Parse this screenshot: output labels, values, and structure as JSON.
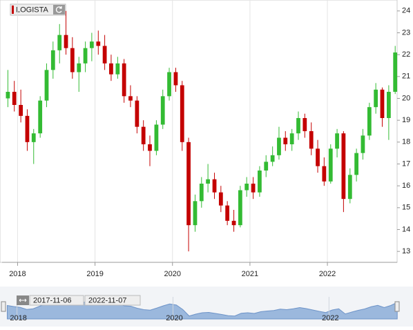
{
  "chart_data": {
    "type": "candlestick",
    "symbol": "LOGISTA",
    "x": [
      2017.875,
      2017.958,
      2018.042,
      2018.125,
      2018.208,
      2018.292,
      2018.375,
      2018.458,
      2018.542,
      2018.625,
      2018.708,
      2018.792,
      2018.875,
      2018.958,
      2019.042,
      2019.125,
      2019.208,
      2019.292,
      2019.375,
      2019.458,
      2019.542,
      2019.625,
      2019.708,
      2019.792,
      2019.875,
      2019.958,
      2020.042,
      2020.125,
      2020.208,
      2020.292,
      2020.375,
      2020.458,
      2020.542,
      2020.625,
      2020.708,
      2020.792,
      2020.875,
      2020.958,
      2021.042,
      2021.125,
      2021.208,
      2021.292,
      2021.375,
      2021.458,
      2021.542,
      2021.625,
      2021.708,
      2021.792,
      2021.875,
      2021.958,
      2022.042,
      2022.125,
      2022.208,
      2022.292,
      2022.375,
      2022.458,
      2022.542,
      2022.625,
      2022.708,
      2022.792,
      2022.875
    ],
    "open": [
      20.0,
      20.3,
      19.7,
      19.2,
      18.0,
      18.4,
      19.9,
      21.3,
      22.2,
      22.9,
      22.3,
      21.2,
      21.6,
      22.3,
      22.6,
      22.4,
      21.6,
      21.1,
      21.6,
      20.1,
      19.9,
      18.7,
      17.9,
      17.6,
      18.8,
      20.1,
      21.2,
      20.6,
      18.0,
      14.2,
      15.3,
      16.1,
      16.3,
      15.7,
      15.1,
      14.4,
      14.2,
      15.8,
      16.1,
      15.7,
      16.7,
      17.1,
      17.4,
      18.2,
      17.9,
      18.4,
      19.1,
      18.5,
      17.7,
      16.9,
      16.2,
      17.7,
      18.4,
      15.4,
      16.5,
      17.5,
      18.3,
      19.6,
      20.4,
      19.1,
      20.3
    ],
    "high": [
      21.3,
      20.8,
      20.4,
      19.5,
      18.6,
      20.1,
      21.6,
      22.6,
      23.4,
      24.0,
      22.8,
      21.9,
      22.6,
      23.0,
      23.1,
      22.9,
      22.0,
      21.9,
      21.8,
      20.6,
      20.1,
      19.0,
      18.3,
      19.0,
      20.4,
      21.4,
      21.4,
      20.8,
      18.2,
      15.6,
      16.4,
      17.0,
      16.6,
      16.0,
      15.3,
      14.9,
      16.0,
      16.4,
      16.4,
      16.9,
      17.4,
      17.8,
      18.7,
      18.5,
      18.6,
      19.4,
      19.3,
      18.9,
      18.1,
      17.3,
      17.9,
      18.6,
      18.5,
      16.8,
      17.7,
      18.6,
      19.8,
      20.7,
      20.5,
      20.6,
      22.4
    ],
    "low": [
      19.6,
      19.4,
      18.9,
      17.6,
      17.0,
      18.2,
      19.6,
      20.9,
      21.6,
      22.0,
      20.9,
      20.3,
      21.2,
      21.7,
      22.0,
      21.3,
      20.8,
      20.9,
      19.8,
      19.6,
      18.4,
      17.6,
      16.9,
      17.4,
      18.6,
      19.9,
      20.3,
      17.6,
      13.0,
      13.9,
      15.0,
      15.7,
      15.4,
      14.8,
      14.2,
      13.9,
      14.1,
      15.5,
      15.4,
      15.5,
      16.4,
      16.9,
      17.2,
      17.6,
      17.6,
      18.1,
      18.2,
      17.4,
      16.6,
      16.0,
      16.1,
      17.3,
      14.8,
      15.2,
      16.2,
      17.2,
      18.1,
      19.3,
      18.7,
      18.1,
      20.2
    ],
    "close": [
      20.3,
      19.7,
      19.2,
      18.0,
      18.4,
      19.9,
      21.3,
      22.2,
      22.9,
      22.3,
      21.2,
      21.6,
      22.3,
      22.6,
      22.4,
      21.6,
      21.1,
      21.6,
      20.1,
      19.9,
      18.7,
      17.9,
      17.6,
      18.8,
      20.1,
      21.2,
      20.6,
      18.0,
      14.2,
      15.3,
      16.1,
      16.3,
      15.7,
      15.1,
      14.4,
      14.2,
      15.8,
      16.1,
      15.7,
      16.7,
      17.1,
      17.4,
      18.2,
      17.9,
      18.4,
      19.1,
      18.5,
      17.7,
      16.9,
      16.2,
      17.7,
      18.4,
      15.4,
      16.5,
      17.5,
      18.3,
      19.6,
      20.4,
      19.1,
      20.3,
      22.1
    ],
    "up_color": "#33bb33",
    "down_color": "#c40000",
    "xlim": [
      2017.8,
      2022.9
    ],
    "xticks": [
      2018,
      2019,
      2020,
      2021,
      2022
    ],
    "ylim": [
      12.5,
      24.5
    ],
    "yticks": [
      13,
      14,
      15,
      16,
      17,
      18,
      19,
      20,
      21,
      22,
      23,
      24
    ],
    "grid": true,
    "navigator": {
      "from": "2017-11-06",
      "to": "2022-11-07",
      "xticks": [
        2018,
        2020,
        2022
      ],
      "color": "#9bb8dd"
    }
  }
}
